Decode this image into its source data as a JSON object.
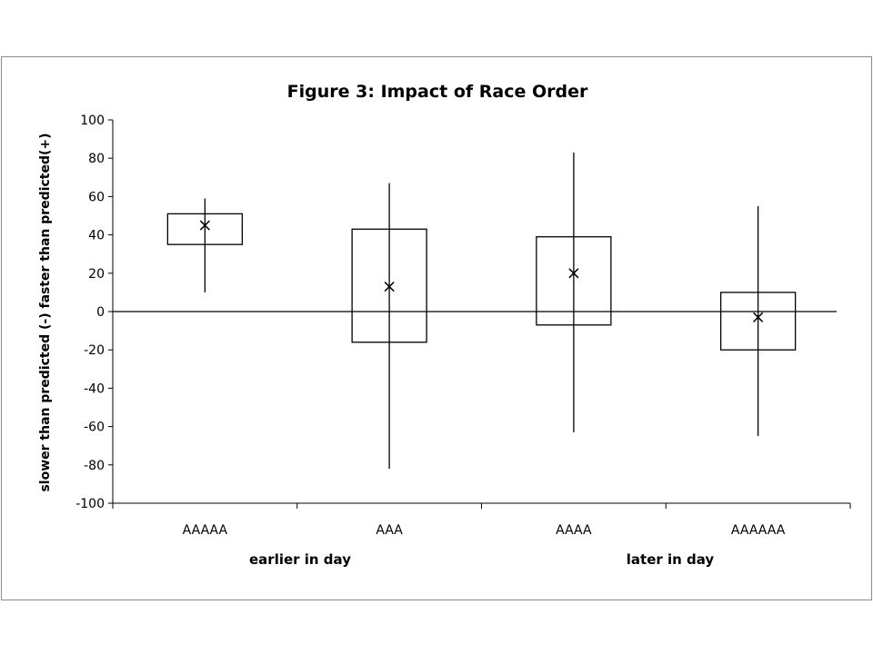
{
  "chart_data": {
    "type": "box",
    "title": "Figure 3: Impact of Race Order",
    "ylabel": "slower than predicted (-) faster than predicted(+)",
    "xlabel": "",
    "ylim": [
      -100,
      100
    ],
    "y_ticks": [
      "100",
      "80",
      "60",
      "40",
      "20",
      "0",
      "-20",
      "-40",
      "-60",
      "-80",
      "-100"
    ],
    "y_tick_values": [
      100,
      80,
      60,
      40,
      20,
      0,
      -20,
      -40,
      -60,
      -80,
      -100
    ],
    "grid": false,
    "legend": "none",
    "categories": [
      "AAAAA",
      "AAA",
      "AAAA",
      "AAAAAA"
    ],
    "series": [
      {
        "boxes": [
          {
            "category": "AAAAA",
            "min": 10,
            "q1": 35,
            "q3": 51,
            "max": 59,
            "mean": 45
          },
          {
            "category": "AAA",
            "min": -82,
            "q1": -16,
            "q3": 43,
            "max": 67,
            "mean": 13
          },
          {
            "category": "AAAA",
            "min": -63,
            "q1": -7,
            "q3": 39,
            "max": 83,
            "mean": 20
          },
          {
            "category": "AAAAAA",
            "min": -65,
            "q1": -20,
            "q3": 10,
            "max": 55,
            "mean": -3
          }
        ]
      }
    ],
    "group_labels": [
      "earlier in day",
      "later in day"
    ]
  }
}
